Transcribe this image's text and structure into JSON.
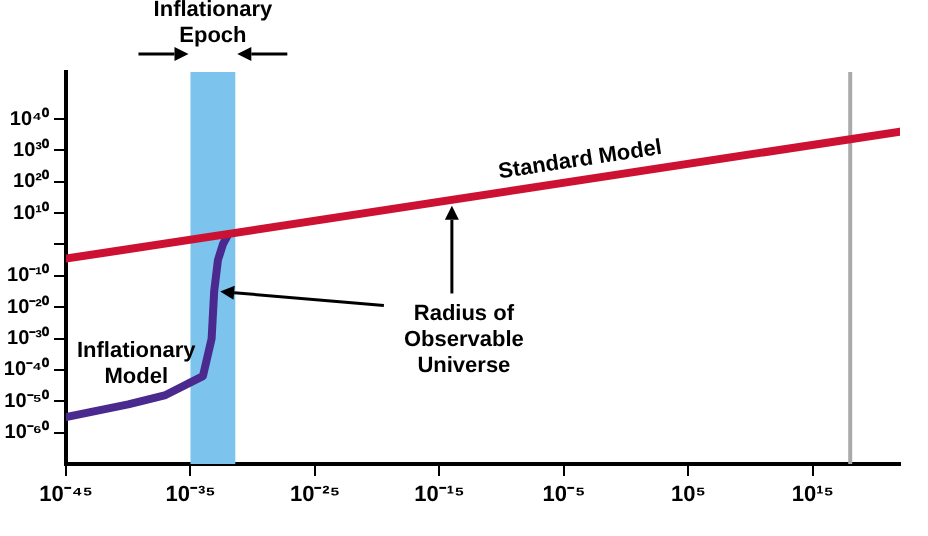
{
  "chart_data": {
    "type": "line",
    "log": "xy",
    "xlim": [
      1e-45,
      1e+22
    ],
    "ylim": [
      1e-70,
      1e+55
    ],
    "xticks": [
      {
        "value": 1e-45,
        "label": "10⁻⁴⁵"
      },
      {
        "value": 1e-35,
        "label": "10⁻³⁵"
      },
      {
        "value": 1e-25,
        "label": "10⁻²⁵"
      },
      {
        "value": 1e-15,
        "label": "10⁻¹⁵"
      },
      {
        "value": 1e-05,
        "label": "10⁻⁵"
      },
      {
        "value": 100000.0,
        "label": "10⁵"
      },
      {
        "value": 1000000000000000.0,
        "label": "10¹⁵"
      }
    ],
    "yticks": [
      {
        "value": 1e-60,
        "label": "10⁻⁶⁰"
      },
      {
        "value": 1e-50,
        "label": "10⁻⁵⁰"
      },
      {
        "value": 1e-40,
        "label": "10⁻⁴⁰"
      },
      {
        "value": 1e-30,
        "label": "10⁻³⁰"
      },
      {
        "value": 1e-20,
        "label": "10⁻²⁰"
      },
      {
        "value": 1e-10,
        "label": "10⁻¹⁰"
      },
      {
        "value": 1,
        "label": null
      },
      {
        "value": 10000000000.0,
        "label": "10¹⁰"
      },
      {
        "value": 1e+20,
        "label": "10²⁰"
      },
      {
        "value": 1e+30,
        "label": "10³⁰"
      },
      {
        "value": 1e+40,
        "label": "10⁴⁰"
      }
    ],
    "series": [
      {
        "name": "Standard Model",
        "color": "#cc1133",
        "x": [
          1e-45,
          1e+22
        ],
        "values": [
          3e-05,
          1e+36
        ]
      },
      {
        "name": "Inflationary Model",
        "color": "#4b2a8f",
        "x": [
          1e-45,
          1e-40,
          1e-37,
          1e-34,
          5e-34,
          8e-34,
          1.6e-33,
          4e-33,
          1e-32
        ],
        "values": [
          1e-55,
          1e-51,
          1e-48,
          1e-42,
          1e-30,
          1e-15,
          1e-05,
          1,
          1000.0
        ]
      }
    ],
    "bands": [
      {
        "axis": "x",
        "from": 1e-35,
        "to": 4e-32,
        "label": "Inflationary Epoch",
        "color": "#7cc4ee"
      }
    ],
    "ref_lines": [
      {
        "axis": "x",
        "value": 1e+18,
        "color": "#aaaaaa"
      }
    ],
    "annotations": [
      "Radius of Observable Universe"
    ],
    "grid": false,
    "legend": false,
    "marker": "none"
  }
}
